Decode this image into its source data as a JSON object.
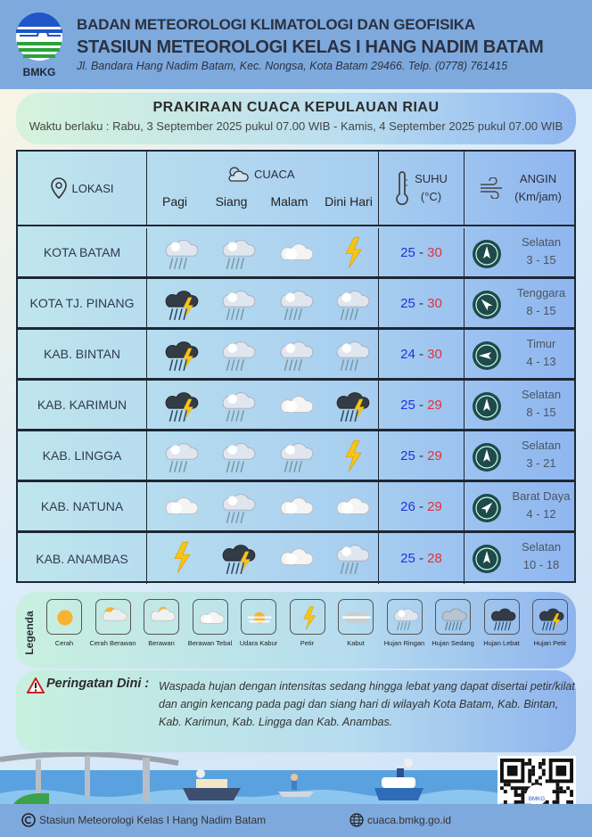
{
  "header": {
    "logo_text": "BMKG",
    "agency": "BADAN METEOROLOGI KLIMATOLOGI DAN GEOFISIKA",
    "station": "STASIUN METEOROLOGI KELAS I HANG NADIM BATAM",
    "address": "Jl. Bandara Hang Nadim Batam, Kec. Nongsa, Kota Batam 29466.  Telp. (0778) 761415"
  },
  "title": {
    "main": "PRAKIRAAN CUACA KEPULAUAN RIAU",
    "validity": "Waktu berlaku : Rabu, 3 September 2025 pukul 07.00 WIB - Kamis, 4 September 2025 pukul 07.00 WIB"
  },
  "table": {
    "headers": {
      "lokasi": "LOKASI",
      "cuaca": "CUACA",
      "periods": [
        "Pagi",
        "Siang",
        "Malam",
        "Dini Hari"
      ],
      "suhu": "SUHU",
      "suhu_unit": "(°C)",
      "angin": "ANGIN",
      "angin_unit": "(Km/jam)"
    },
    "rows": [
      {
        "location": "KOTA BATAM",
        "weather": [
          "hujan-ringan",
          "hujan-ringan",
          "berawan-tebal",
          "petir"
        ],
        "tmin": "25",
        "tmax": "30",
        "wind_dir": "Selatan",
        "wind_speed": "3 - 15",
        "wind_from_deg": 180
      },
      {
        "location": "KOTA TJ. PINANG",
        "weather": [
          "hujan-petir",
          "hujan-ringan",
          "hujan-ringan",
          "hujan-ringan"
        ],
        "tmin": "25",
        "tmax": "30",
        "wind_dir": "Tenggara",
        "wind_speed": "8 - 15",
        "wind_from_deg": 135
      },
      {
        "location": "KAB. BINTAN",
        "weather": [
          "hujan-petir",
          "hujan-ringan",
          "hujan-ringan",
          "hujan-ringan"
        ],
        "tmin": "24",
        "tmax": "30",
        "wind_dir": "Timur",
        "wind_speed": "4 - 13",
        "wind_from_deg": 90
      },
      {
        "location": "KAB. KARIMUN",
        "weather": [
          "hujan-petir",
          "hujan-ringan",
          "berawan-tebal",
          "hujan-petir"
        ],
        "tmin": "25",
        "tmax": "29",
        "wind_dir": "Selatan",
        "wind_speed": "8 - 15",
        "wind_from_deg": 180
      },
      {
        "location": "KAB. LINGGA",
        "weather": [
          "hujan-ringan",
          "hujan-ringan",
          "hujan-ringan",
          "petir"
        ],
        "tmin": "25",
        "tmax": "29",
        "wind_dir": "Selatan",
        "wind_speed": "3 - 21",
        "wind_from_deg": 180
      },
      {
        "location": "KAB. NATUNA",
        "weather": [
          "berawan-tebal",
          "hujan-ringan",
          "berawan-tebal",
          "berawan-tebal"
        ],
        "tmin": "26",
        "tmax": "29",
        "wind_dir": "Barat Daya",
        "wind_speed": "4 - 12",
        "wind_from_deg": 225
      },
      {
        "location": "KAB. ANAMBAS",
        "weather": [
          "petir",
          "hujan-petir",
          "berawan-tebal",
          "hujan-ringan"
        ],
        "tmin": "25",
        "tmax": "28",
        "wind_dir": "Selatan",
        "wind_speed": "10 - 18",
        "wind_from_deg": 180
      }
    ]
  },
  "legend": {
    "title": "Legenda",
    "items": [
      {
        "icon": "cerah",
        "label": "Cerah"
      },
      {
        "icon": "cerah-berawan",
        "label": "Cerah Berawan"
      },
      {
        "icon": "berawan",
        "label": "Berawan"
      },
      {
        "icon": "berawan-tebal",
        "label": "Berawan Tebal"
      },
      {
        "icon": "udara-kabur",
        "label": "Udara Kabur"
      },
      {
        "icon": "petir",
        "label": "Petir"
      },
      {
        "icon": "kabut",
        "label": "Kabut"
      },
      {
        "icon": "hujan-ringan",
        "label": "Hujan Ringan"
      },
      {
        "icon": "hujan-sedang",
        "label": "Hujan Sedang"
      },
      {
        "icon": "hujan-lebat",
        "label": "Hujan Lebat"
      },
      {
        "icon": "hujan-petir",
        "label": "Hujan Petir"
      }
    ]
  },
  "warning": {
    "label": "Peringatan Dini :",
    "text": "Waspada hujan dengan intensitas sedang hingga lebat yang dapat disertai petir/kilat dan angin kencang pada pagi dan siang hari di wilayah Kota Batam, Kab. Bintan, Kab. Karimun,  Kab. Lingga dan Kab. Anambas."
  },
  "footer": {
    "copyright": "Stasiun Meteorologi Kelas I Hang Nadim Batam",
    "website": "cuaca.bmkg.go.id",
    "qr_logo_text": "BMKG"
  },
  "colors": {
    "header_bg": "#7ea9dd",
    "tmin": "#1d34d8",
    "tmax": "#e0323a",
    "compass": "#1f4a4a"
  }
}
